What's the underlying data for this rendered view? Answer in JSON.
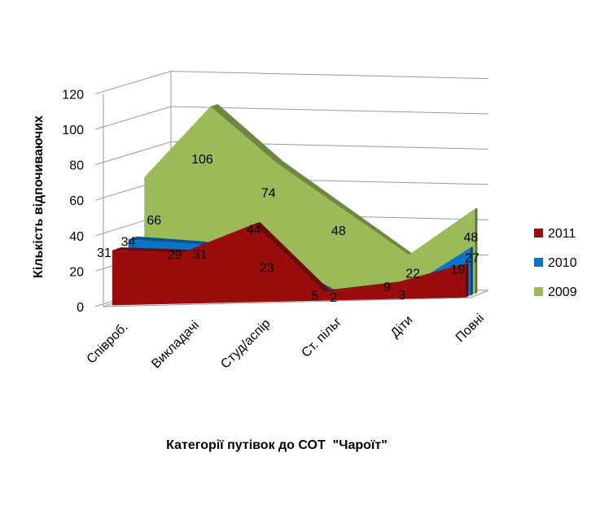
{
  "chart_data": {
    "type": "area",
    "three_d": true,
    "categories": [
      "Співроб.",
      "Викладачі",
      "Студ/аспір",
      "Ст. пільг",
      "Діти",
      "Повні"
    ],
    "series": [
      {
        "name": "2011",
        "values": [
          31,
          29,
          44,
          5,
          9,
          19
        ],
        "color": "#9b0c0c"
      },
      {
        "name": "2010",
        "values": [
          34,
          31,
          23,
          2,
          3,
          27
        ],
        "color": "#0b73c8"
      },
      {
        "name": "2009",
        "values": [
          66,
          106,
          74,
          48,
          22,
          48
        ],
        "color": "#9bbb59"
      }
    ],
    "xlabel": "Категорії путівок до СОТ  \"Чароїт\"",
    "ylabel": "Кількість відпочиваючих",
    "ylim": [
      0,
      120
    ],
    "yticks": [
      "0",
      "20",
      "40",
      "60",
      "80",
      "100",
      "120"
    ],
    "grid": true,
    "legend_position": "right"
  }
}
